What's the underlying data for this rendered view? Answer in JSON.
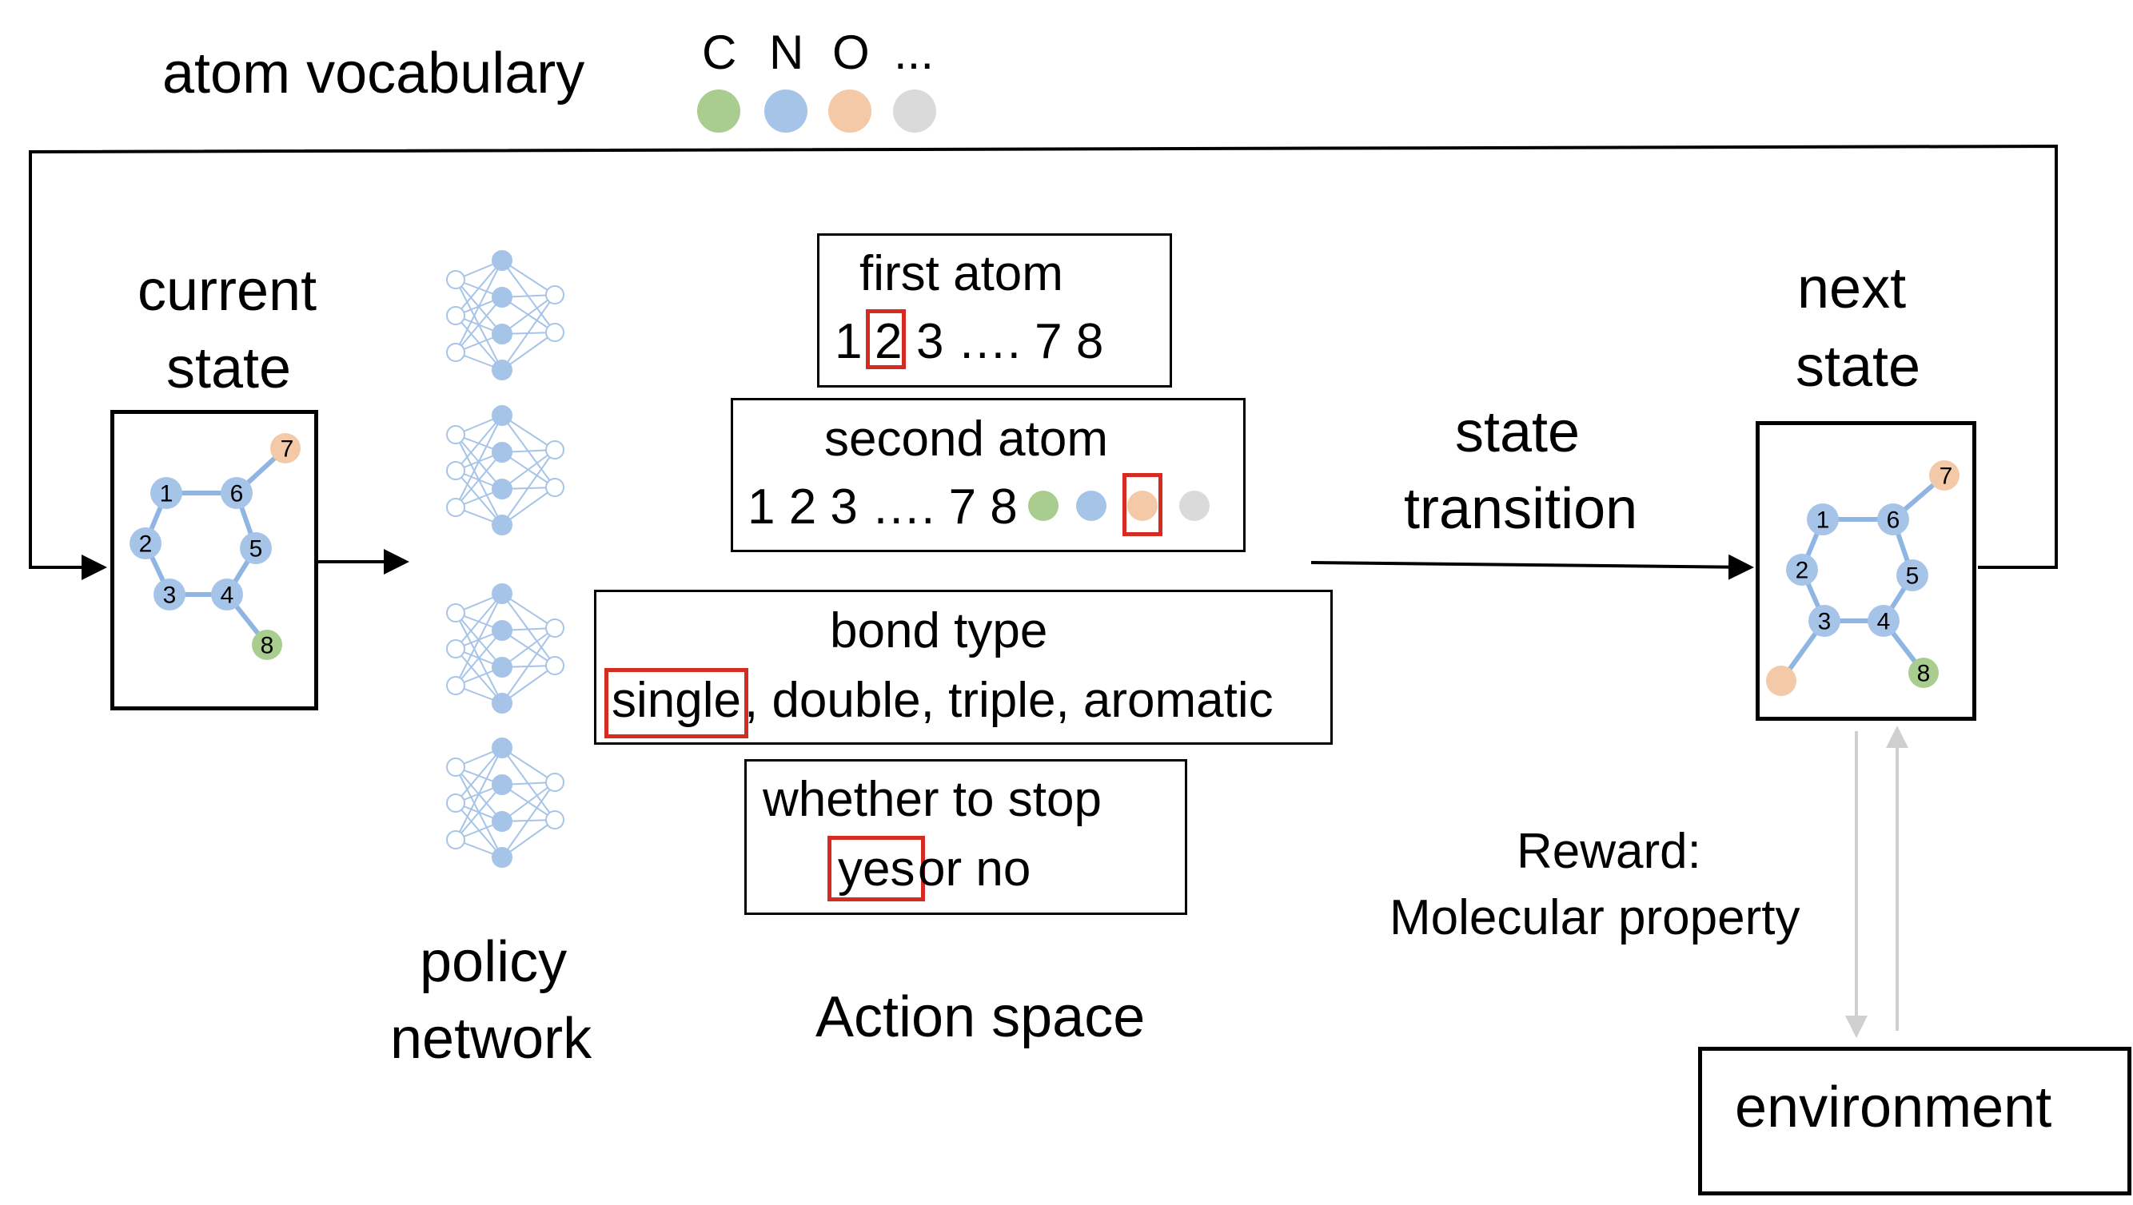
{
  "vocab": {
    "label": "atom vocabulary",
    "atoms": [
      {
        "symbol": "C",
        "color": "#a9cc8f"
      },
      {
        "symbol": "N",
        "color": "#a6c4e8"
      },
      {
        "symbol": "O",
        "color": "#f4c9a8"
      },
      {
        "symbol": "...",
        "color": "#dadada"
      }
    ]
  },
  "current_state": {
    "title_line1": "current",
    "title_line2": "state",
    "atoms": [
      "1",
      "2",
      "3",
      "4",
      "5",
      "6",
      "7",
      "8"
    ]
  },
  "policy": {
    "line1": "policy",
    "line2": "network"
  },
  "action_space": {
    "label": "Action space",
    "first_atom": {
      "title": "first atom",
      "pre": "1",
      "selected": "2",
      "post": "3 …. 7 8"
    },
    "second_atom": {
      "title": "second atom",
      "indices": "1 2 3 …. 7 8"
    },
    "bond_type": {
      "title": "bond type",
      "selected": "single",
      "rest": ", double, triple, aromatic"
    },
    "stop": {
      "title": "whether to stop",
      "selected": "yes",
      "rest": " or no"
    }
  },
  "transition": {
    "line1": "state",
    "line2": "transition"
  },
  "next_state": {
    "title_line1": "next",
    "title_line2": "state",
    "atoms": [
      "1",
      "2",
      "3",
      "4",
      "5",
      "6",
      "7",
      "8"
    ]
  },
  "reward": {
    "line1": "Reward:",
    "line2": "Molecular property"
  },
  "environment": {
    "label": "environment"
  },
  "colors": {
    "node_blue": "#a6c4e8",
    "bond_blue": "#8fb5e3",
    "carbon_green": "#a9cc8f",
    "oxygen_peach": "#f4c9a8",
    "highlight_red": "#d62b20",
    "gray_arrow": "#cfcfcf"
  }
}
